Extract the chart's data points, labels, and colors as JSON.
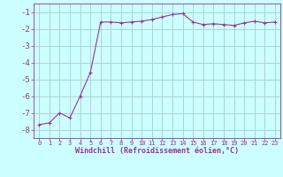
{
  "x": [
    0,
    1,
    2,
    3,
    4,
    5,
    6,
    7,
    8,
    9,
    10,
    11,
    12,
    13,
    14,
    15,
    16,
    17,
    18,
    19,
    20,
    21,
    22,
    23
  ],
  "y": [
    -7.7,
    -7.6,
    -7.0,
    -7.3,
    -6.0,
    -4.6,
    -1.6,
    -1.6,
    -1.65,
    -1.6,
    -1.55,
    -1.45,
    -1.3,
    -1.15,
    -1.1,
    -1.6,
    -1.75,
    -1.7,
    -1.75,
    -1.8,
    -1.65,
    -1.55,
    -1.65,
    -1.6
  ],
  "line_color": "#993399",
  "marker": "+",
  "marker_size": 3,
  "bg_color": "#ccffff",
  "grid_color": "#aacccc",
  "xlabel": "Windchill (Refroidissement éolien,°C)",
  "xlabel_color": "#993399",
  "tick_color": "#993399",
  "ylim": [
    -8.5,
    -0.5
  ],
  "xlim": [
    -0.5,
    23.5
  ],
  "yticks": [
    -8,
    -7,
    -6,
    -5,
    -4,
    -3,
    -2,
    -1
  ],
  "xticks": [
    0,
    1,
    2,
    3,
    4,
    5,
    6,
    7,
    8,
    9,
    10,
    11,
    12,
    13,
    14,
    15,
    16,
    17,
    18,
    19,
    20,
    21,
    22,
    23
  ],
  "spine_color": "#993399",
  "font_family": "monospace",
  "xlabel_fontsize": 6.0,
  "xtick_fontsize": 5.0,
  "ytick_fontsize": 6.5
}
